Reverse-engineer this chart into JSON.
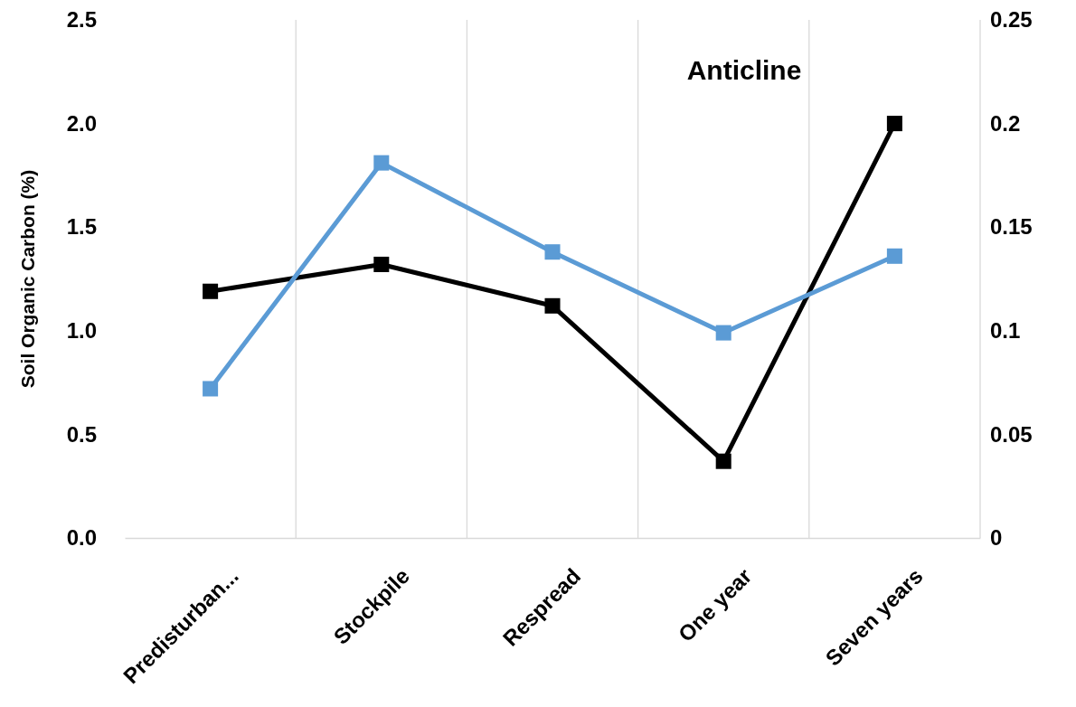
{
  "chart_data": {
    "type": "line",
    "title": "Anticline",
    "ylabel": "Soil Organic Carbon (%)",
    "categories": [
      "Predisturban...",
      "Stockpile",
      "Respread",
      "One year",
      "Seven years"
    ],
    "series": [
      {
        "color": "#000000",
        "values": [
          1.19,
          1.32,
          1.12,
          0.37,
          2.0
        ]
      },
      {
        "color": "#5b9bd5",
        "axis": "y2",
        "values": [
          0.072,
          0.181,
          0.138,
          0.099,
          0.136
        ]
      }
    ],
    "ylim": [
      0,
      2.5
    ],
    "yticks": [
      {
        "value": 0,
        "label": "0.0"
      },
      {
        "value": 0.5,
        "label": "0.5"
      },
      {
        "value": 1,
        "label": "1.0"
      },
      {
        "value": 1.5,
        "label": "1.5"
      },
      {
        "value": 2,
        "label": "2.0"
      },
      {
        "value": 2.5,
        "label": "2.5"
      }
    ],
    "y2lim": [
      0,
      0.25
    ],
    "y2ticks": [
      0,
      0.05,
      0.1,
      0.15,
      0.2,
      0.25
    ],
    "grid": "x",
    "marker": "square",
    "line_style": "solid"
  }
}
